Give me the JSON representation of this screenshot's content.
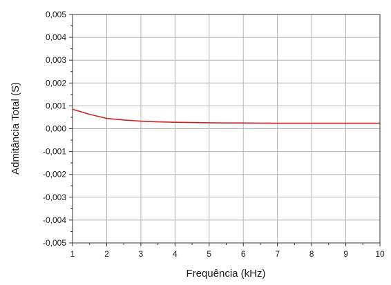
{
  "chart_data": {
    "type": "line",
    "xlabel": "Frequência (kHz)",
    "ylabel": "Admitância Total (S)",
    "xlim": [
      1,
      10
    ],
    "ylim": [
      -0.005,
      0.005
    ],
    "grid": true,
    "x_ticks": [
      1,
      2,
      3,
      4,
      5,
      6,
      7,
      8,
      9,
      10
    ],
    "x_tick_labels": [
      "1",
      "2",
      "3",
      "4",
      "5",
      "6",
      "7",
      "8",
      "9",
      "10"
    ],
    "y_ticks": [
      0.005,
      0.004,
      0.003,
      0.002,
      0.001,
      0.0,
      -0.001,
      -0.002,
      -0.003,
      -0.004,
      -0.005
    ],
    "y_tick_labels": [
      "0,005",
      "0,004",
      "0,003",
      "0,002",
      "0,001",
      "0,000",
      "-0,001",
      "-0,002",
      "-0,003",
      "-0,004",
      "-0,005"
    ],
    "series": [
      {
        "color": "#d42020",
        "x": [
          1,
          1.5,
          2,
          2.5,
          3,
          3.5,
          4,
          4.5,
          5,
          5.5,
          6,
          7,
          8,
          9,
          10
        ],
        "y": [
          0.00085,
          0.00063,
          0.00045,
          0.00038,
          0.00033,
          0.0003,
          0.00028,
          0.00027,
          0.00026,
          0.00025,
          0.00025,
          0.00024,
          0.00024,
          0.00024,
          0.00024
        ]
      }
    ]
  }
}
